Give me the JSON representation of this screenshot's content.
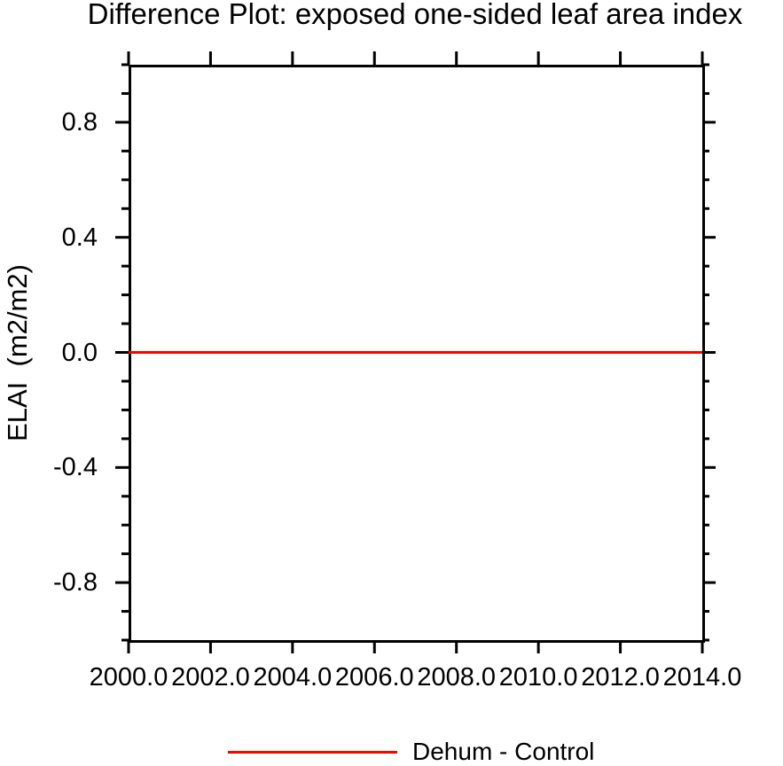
{
  "title": "Difference Plot: exposed one-sided leaf area index",
  "colors": {
    "background": "#ffffff",
    "axis": "#000000",
    "series_line": "#ff0000"
  },
  "chart_data": {
    "type": "line",
    "title": "Difference Plot: exposed one-sided leaf area index",
    "xlabel": "",
    "ylabel": "ELAI  (m2/m2)",
    "xlim": [
      2000.0,
      2014.0
    ],
    "ylim": [
      -1.0,
      1.0
    ],
    "grid": false,
    "x_ticks": [
      2000.0,
      2002.0,
      2004.0,
      2006.0,
      2008.0,
      2010.0,
      2012.0,
      2014.0
    ],
    "x_tick_labels": [
      "2000.0",
      "2002.0",
      "2004.0",
      "2006.0",
      "2008.0",
      "2010.0",
      "2012.0",
      "2014.0"
    ],
    "y_major_ticks": [
      0.8,
      0.4,
      0.0,
      -0.4,
      -0.8
    ],
    "y_tick_labels": [
      "0.8",
      "0.4",
      "0.0",
      "-0.4",
      "-0.8"
    ],
    "y_minor_step": 0.1,
    "series": [
      {
        "name": "Dehum - Control",
        "color": "#ff0000",
        "x": [
          2000.0,
          2014.0
        ],
        "y": [
          0.0,
          0.0
        ]
      }
    ],
    "legend": {
      "position": "bottom-center",
      "entries": [
        {
          "label": "Dehum - Control",
          "color": "#ff0000"
        }
      ]
    }
  }
}
